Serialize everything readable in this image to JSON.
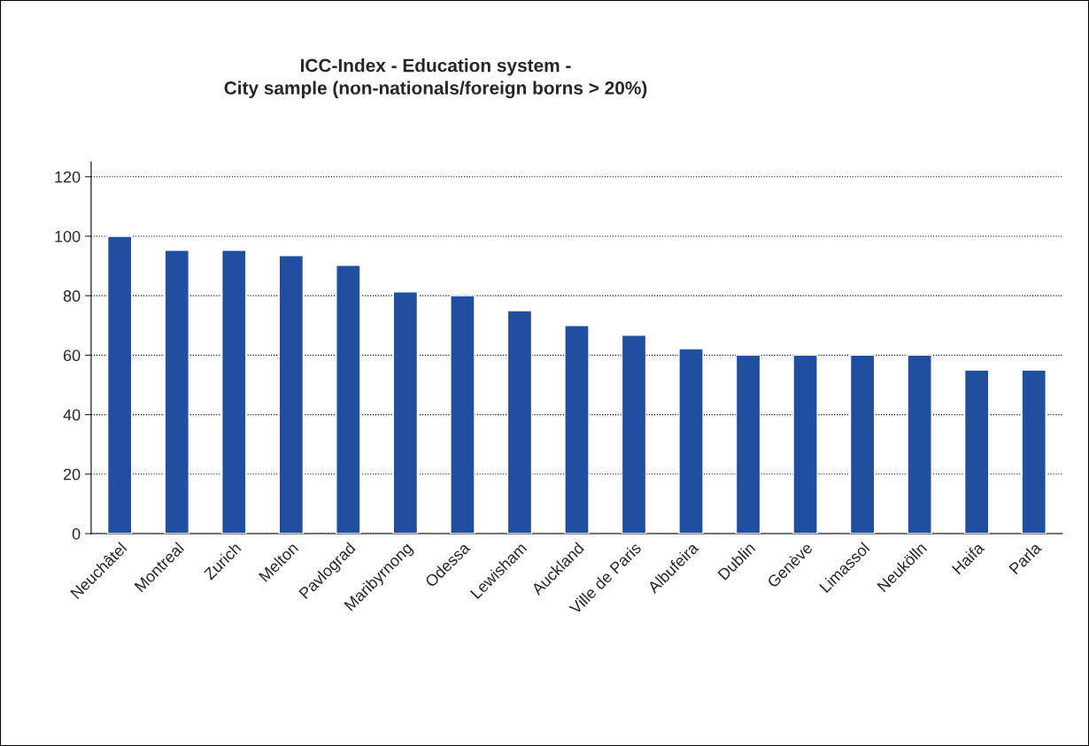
{
  "chart_data": {
    "type": "bar",
    "title": "ICC-Index - Education system -\nCity sample (non-nationals/foreign borns > 20%)",
    "categories": [
      "Neuchâtel",
      "Montreal",
      "Zurich",
      "Melton",
      "Pavlograd",
      "Maribyrnong",
      "Odessa",
      "Lewisham",
      "Auckland",
      "Ville de Paris",
      "Albufeira",
      "Dublin",
      "Genève",
      "Limassol",
      "Neukölln",
      "Haifa",
      "Parla"
    ],
    "values": [
      100,
      95.3,
      95.3,
      93.5,
      90.2,
      81.3,
      80,
      75,
      70,
      66.7,
      62.2,
      60,
      60,
      60,
      60,
      55,
      55
    ],
    "color": "#1f4f9e",
    "ylim": [
      0,
      125
    ],
    "yticks": [
      0,
      20,
      40,
      60,
      80,
      100,
      120
    ],
    "grid": "y"
  }
}
